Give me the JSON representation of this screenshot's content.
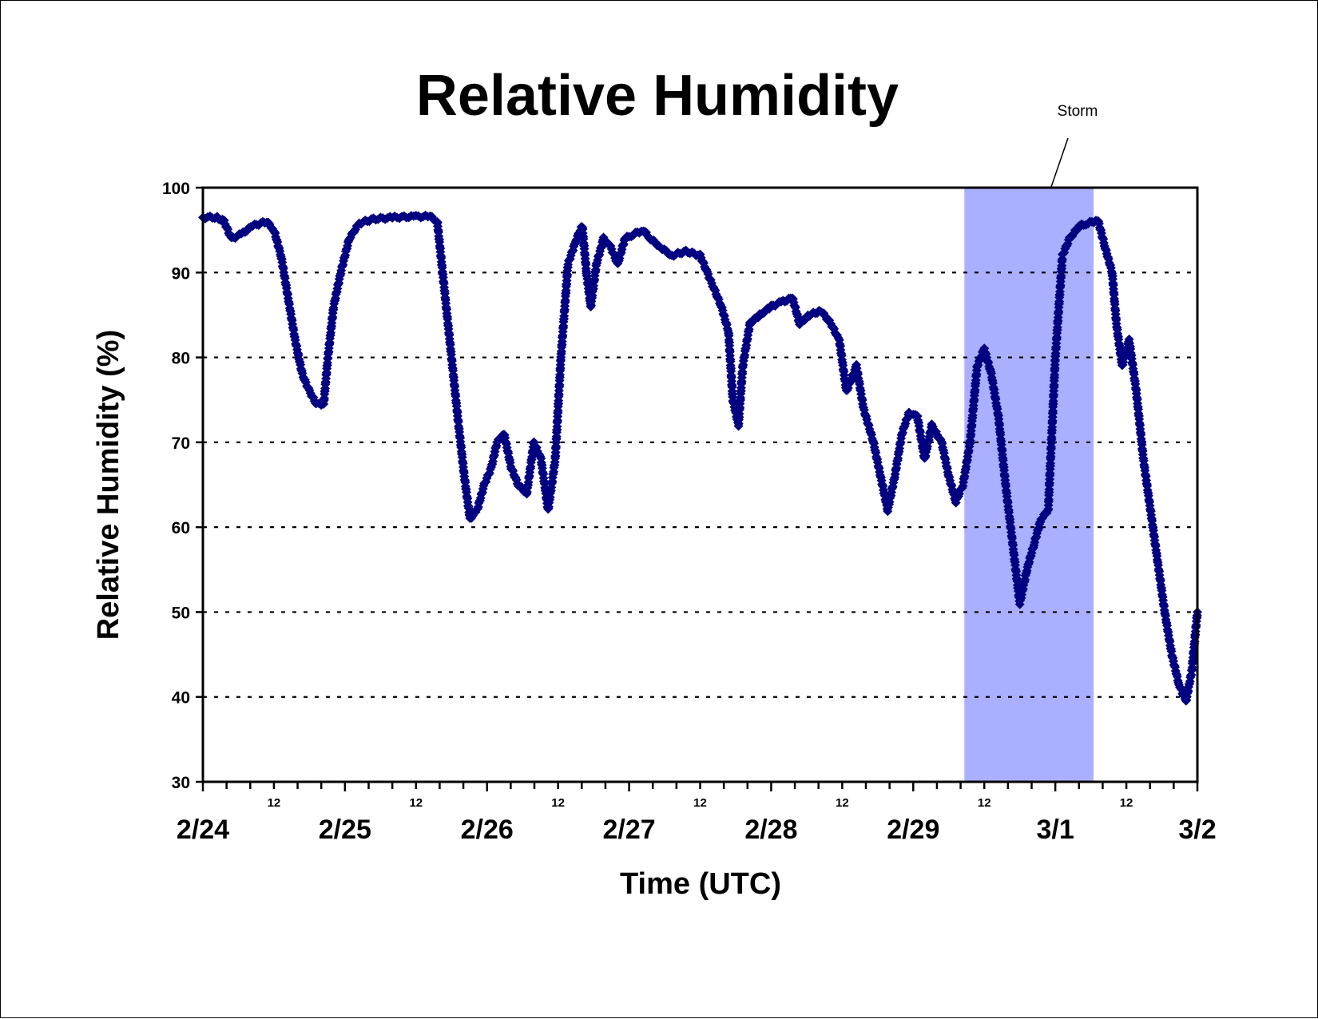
{
  "chart_data": {
    "type": "scatter",
    "title": "Relative Humidity",
    "xlabel": "Time (UTC)",
    "ylabel": "Relative Humidity (%)",
    "ylim": [
      30,
      100
    ],
    "yticks": [
      "30",
      "40",
      "50",
      "60",
      "70",
      "80",
      "90",
      "100"
    ],
    "x_range_days": [
      0,
      7
    ],
    "day_labels": [
      "2/24",
      "2/25",
      "2/26",
      "2/27",
      "2/28",
      "2/29",
      "3/1",
      "3/2"
    ],
    "hour_label": "12",
    "grid": "horizontal dotted",
    "legend": "none",
    "marker": "diamond",
    "series_color": "#000080",
    "highlight": {
      "label": "Storm",
      "x_start": 5.36,
      "x_end": 6.27,
      "color": "#aab0ff"
    },
    "series": [
      {
        "x_unit": "days since 2/24 00 UTC",
        "points": [
          [
            0.0,
            96.5
          ],
          [
            0.1,
            96.5
          ],
          [
            0.15,
            96.0
          ],
          [
            0.2,
            94.0
          ],
          [
            0.27,
            94.5
          ],
          [
            0.35,
            95.5
          ],
          [
            0.45,
            96.0
          ],
          [
            0.5,
            95.0
          ],
          [
            0.55,
            92.0
          ],
          [
            0.6,
            87.0
          ],
          [
            0.65,
            82.0
          ],
          [
            0.7,
            78.0
          ],
          [
            0.75,
            76.0
          ],
          [
            0.8,
            74.5
          ],
          [
            0.85,
            74.5
          ],
          [
            0.88,
            80.0
          ],
          [
            0.92,
            86.0
          ],
          [
            0.97,
            90.0
          ],
          [
            1.03,
            94.0
          ],
          [
            1.1,
            95.8
          ],
          [
            1.2,
            96.3
          ],
          [
            1.35,
            96.5
          ],
          [
            1.5,
            96.6
          ],
          [
            1.6,
            96.6
          ],
          [
            1.65,
            96.0
          ],
          [
            1.7,
            88.0
          ],
          [
            1.75,
            80.0
          ],
          [
            1.8,
            72.0
          ],
          [
            1.84,
            66.0
          ],
          [
            1.88,
            61.0
          ],
          [
            1.93,
            62.0
          ],
          [
            1.98,
            65.0
          ],
          [
            2.03,
            67.0
          ],
          [
            2.07,
            70.0
          ],
          [
            2.12,
            71.0
          ],
          [
            2.17,
            67.0
          ],
          [
            2.22,
            65.0
          ],
          [
            2.28,
            64.0
          ],
          [
            2.33,
            70.0
          ],
          [
            2.38,
            68.0
          ],
          [
            2.43,
            62.0
          ],
          [
            2.48,
            68.0
          ],
          [
            2.52,
            80.0
          ],
          [
            2.57,
            91.0
          ],
          [
            2.63,
            94.0
          ],
          [
            2.67,
            95.5
          ],
          [
            2.7,
            90.0
          ],
          [
            2.73,
            86.0
          ],
          [
            2.77,
            91.0
          ],
          [
            2.82,
            94.0
          ],
          [
            2.87,
            93.0
          ],
          [
            2.92,
            91.0
          ],
          [
            2.97,
            94.0
          ],
          [
            3.03,
            94.5
          ],
          [
            3.1,
            95.0
          ],
          [
            3.15,
            94.0
          ],
          [
            3.22,
            93.0
          ],
          [
            3.3,
            92.0
          ],
          [
            3.4,
            92.5
          ],
          [
            3.5,
            92.0
          ],
          [
            3.55,
            90.0
          ],
          [
            3.6,
            88.0
          ],
          [
            3.65,
            86.0
          ],
          [
            3.7,
            83.0
          ],
          [
            3.73,
            75.0
          ],
          [
            3.77,
            72.0
          ],
          [
            3.8,
            79.0
          ],
          [
            3.85,
            84.0
          ],
          [
            3.92,
            85.0
          ],
          [
            4.0,
            86.0
          ],
          [
            4.07,
            86.5
          ],
          [
            4.15,
            87.0
          ],
          [
            4.2,
            84.0
          ],
          [
            4.27,
            85.0
          ],
          [
            4.35,
            85.5
          ],
          [
            4.42,
            84.0
          ],
          [
            4.48,
            82.0
          ],
          [
            4.53,
            76.0
          ],
          [
            4.6,
            79.0
          ],
          [
            4.65,
            74.0
          ],
          [
            4.72,
            70.0
          ],
          [
            4.77,
            66.0
          ],
          [
            4.82,
            62.0
          ],
          [
            4.87,
            66.0
          ],
          [
            4.92,
            71.0
          ],
          [
            4.97,
            73.5
          ],
          [
            5.03,
            73.0
          ],
          [
            5.08,
            68.0
          ],
          [
            5.13,
            72.0
          ],
          [
            5.2,
            70.0
          ],
          [
            5.25,
            66.0
          ],
          [
            5.3,
            63.0
          ],
          [
            5.35,
            65.0
          ],
          [
            5.4,
            70.0
          ],
          [
            5.45,
            79.0
          ],
          [
            5.5,
            81.0
          ],
          [
            5.55,
            78.0
          ],
          [
            5.6,
            73.0
          ],
          [
            5.65,
            65.0
          ],
          [
            5.7,
            58.0
          ],
          [
            5.75,
            51.0
          ],
          [
            5.8,
            55.0
          ],
          [
            5.85,
            58.0
          ],
          [
            5.9,
            61.0
          ],
          [
            5.95,
            62.0
          ],
          [
            6.0,
            80.0
          ],
          [
            6.05,
            92.0
          ],
          [
            6.1,
            94.0
          ],
          [
            6.17,
            95.5
          ],
          [
            6.23,
            95.8
          ],
          [
            6.3,
            96.2
          ],
          [
            6.35,
            93.0
          ],
          [
            6.4,
            90.0
          ],
          [
            6.43,
            84.0
          ],
          [
            6.47,
            79.0
          ],
          [
            6.52,
            82.0
          ],
          [
            6.57,
            76.0
          ],
          [
            6.62,
            68.0
          ],
          [
            6.67,
            62.0
          ],
          [
            6.72,
            56.0
          ],
          [
            6.77,
            50.0
          ],
          [
            6.82,
            45.0
          ],
          [
            6.87,
            41.5
          ],
          [
            6.92,
            39.5
          ],
          [
            6.96,
            43.0
          ],
          [
            7.0,
            50.0
          ]
        ]
      }
    ]
  }
}
